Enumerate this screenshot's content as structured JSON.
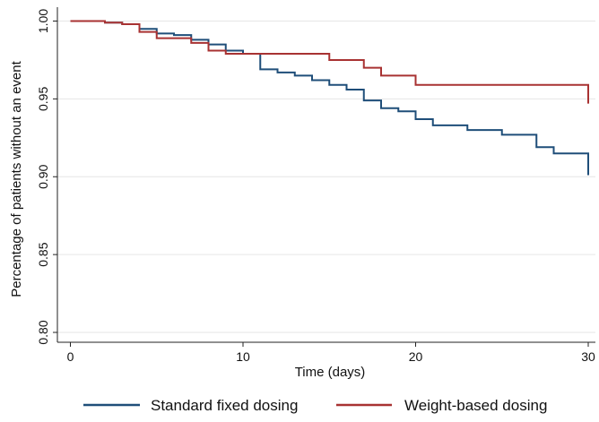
{
  "chart_data": {
    "type": "line",
    "subtype": "kaplan-meier-step",
    "title": "",
    "xlabel": "Time (days)",
    "ylabel": "Percentage of patients without an event",
    "xlim": [
      0,
      30
    ],
    "ylim": [
      0.8,
      1.0
    ],
    "x_ticks": [
      0,
      10,
      20,
      30
    ],
    "x_tick_labels": [
      "0",
      "10",
      "20",
      "30"
    ],
    "y_ticks": [
      0.8,
      0.85,
      0.9,
      0.95,
      1.0
    ],
    "y_tick_labels": [
      "0.80",
      "0.85",
      "0.90",
      "0.95",
      "1.00"
    ],
    "grid": "horizontal",
    "legend_position": "bottom",
    "series": [
      {
        "name": "Standard fixed dosing",
        "color": "#1f4e79",
        "steps": [
          [
            0,
            1.0
          ],
          [
            1,
            1.0
          ],
          [
            2,
            0.999
          ],
          [
            3,
            0.998
          ],
          [
            4,
            0.995
          ],
          [
            5,
            0.992
          ],
          [
            6,
            0.991
          ],
          [
            7,
            0.988
          ],
          [
            8,
            0.985
          ],
          [
            9,
            0.981
          ],
          [
            10,
            0.979
          ],
          [
            11,
            0.969
          ],
          [
            12,
            0.967
          ],
          [
            13,
            0.965
          ],
          [
            14,
            0.962
          ],
          [
            15,
            0.959
          ],
          [
            16,
            0.956
          ],
          [
            17,
            0.949
          ],
          [
            18,
            0.944
          ],
          [
            19,
            0.942
          ],
          [
            20,
            0.937
          ],
          [
            21,
            0.933
          ],
          [
            23,
            0.93
          ],
          [
            25,
            0.927
          ],
          [
            27,
            0.919
          ],
          [
            28,
            0.915
          ],
          [
            30,
            0.901
          ]
        ]
      },
      {
        "name": "Weight-based dosing",
        "color": "#a83232",
        "steps": [
          [
            0,
            1.0
          ],
          [
            2,
            0.999
          ],
          [
            3,
            0.998
          ],
          [
            4,
            0.993
          ],
          [
            5,
            0.989
          ],
          [
            7,
            0.986
          ],
          [
            8,
            0.981
          ],
          [
            9,
            0.979
          ],
          [
            15,
            0.975
          ],
          [
            17,
            0.97
          ],
          [
            18,
            0.965
          ],
          [
            20,
            0.959
          ],
          [
            30,
            0.947
          ]
        ]
      }
    ]
  }
}
